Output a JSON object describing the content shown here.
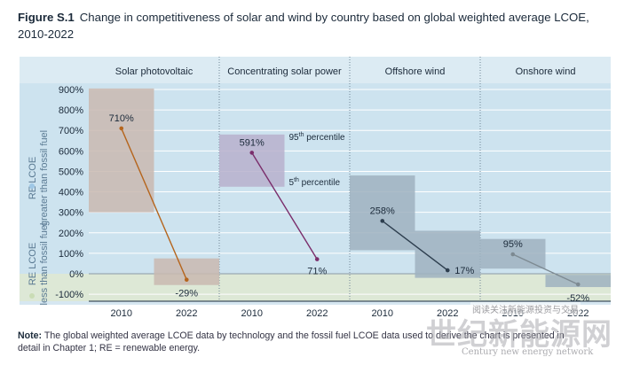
{
  "figure": {
    "label": "Figure S.1",
    "title": "Change in competitiveness of solar and wind by country based on global weighted average LCOE, 2010-2022"
  },
  "note": {
    "label": "Note:",
    "text": "The global weighted average LCOE data by technology and the fossil fuel LCOE data used to derive the chart is presented in detail in Chapter 1; RE = renewable energy."
  },
  "watermark": {
    "cn": "世纪新能源网",
    "en": "Century new energy network",
    "overlay": "阅读关注新能源投资与交易"
  },
  "colors": {
    "upper_bg": "#cde3ef",
    "lower_bg": "#dde8d6",
    "pv": "#b5651d",
    "csp": "#7a2d6b",
    "offshore": "#2d3e4e",
    "onshore": "#7d8a92",
    "pv_box": "#c9b8b0",
    "csp_box": "#b7b0cc",
    "wind_box": "#9fb2bf"
  },
  "chart_data": {
    "type": "line",
    "ylim": [
      -150,
      900
    ],
    "yticks": [
      -100,
      0,
      100,
      200,
      300,
      400,
      500,
      600,
      700,
      800,
      900
    ],
    "ytick_labels": [
      "-100%",
      "0%",
      "100%",
      "200%",
      "300%",
      "400%",
      "500%",
      "600%",
      "700%",
      "800%",
      "900%"
    ],
    "ylabel_upper": [
      "RE LCOE",
      "greater than fossil fuel"
    ],
    "ylabel_lower": [
      "RE LCOE",
      "less than fossil fuel"
    ],
    "grid": true,
    "panels": [
      {
        "name": "Solar photovoltaic",
        "series_key": "pv",
        "x": [
          "2010",
          "2022"
        ],
        "values": [
          710,
          -29
        ],
        "labels": [
          "710%",
          "-29%"
        ],
        "ranges": [
          [
            300,
            905
          ],
          [
            -55,
            75
          ]
        ]
      },
      {
        "name": "Concentrating solar power",
        "series_key": "csp",
        "x": [
          "2010",
          "2022"
        ],
        "values": [
          591,
          71
        ],
        "labels": [
          "591%",
          "71%"
        ],
        "ranges": [
          [
            425,
            680
          ],
          null
        ],
        "percentile_labels": [
          "95th percentile",
          "5th percentile"
        ]
      },
      {
        "name": "Offshore wind",
        "series_key": "offshore",
        "x": [
          "2010",
          "2022"
        ],
        "values": [
          258,
          17
        ],
        "labels": [
          "258%",
          "17%"
        ],
        "ranges": [
          [
            115,
            480
          ],
          [
            -20,
            210
          ]
        ]
      },
      {
        "name": "Onshore wind",
        "series_key": "onshore",
        "x": [
          "2010",
          "2022"
        ],
        "values": [
          95,
          -52
        ],
        "labels": [
          "95%",
          "-52%"
        ],
        "ranges": [
          [
            25,
            170
          ],
          [
            -65,
            -5
          ]
        ]
      }
    ]
  }
}
